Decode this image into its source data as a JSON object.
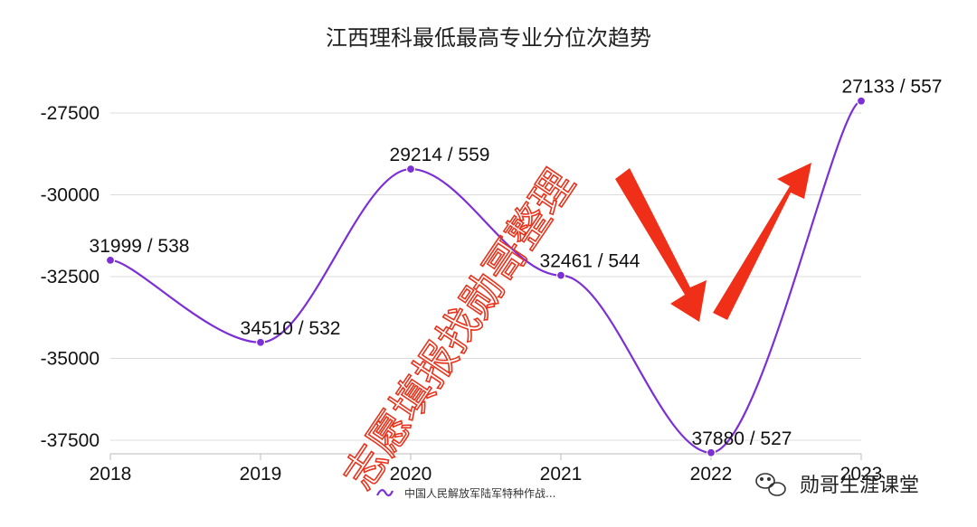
{
  "chart_data": {
    "type": "line",
    "title": "江西理科最低最高专业分位次趋势",
    "categories": [
      "2018",
      "2019",
      "2020",
      "2021",
      "2022",
      "2023"
    ],
    "series": [
      {
        "name": "中国人民解放军陆军特种作战...",
        "color": "#7b2fd4",
        "values": [
          -31999,
          -34510,
          -29214,
          -32461,
          -37880,
          -27133
        ],
        "point_labels": [
          "31999 / 538",
          "34510 / 532",
          "29214 / 559",
          "32461 / 544",
          "37880 / 527",
          "27133 / 557"
        ]
      }
    ],
    "yticks": [
      "-27500",
      "-30000",
      "-32500",
      "-35000",
      "-37500"
    ],
    "ylim": [
      -38000,
      -26000
    ],
    "grid": true,
    "legend_position": "bottom"
  },
  "watermark": {
    "text": "志愿填报找勋哥整理",
    "color": "#e8331c"
  },
  "brand": {
    "text": "勋哥生涯课堂"
  }
}
